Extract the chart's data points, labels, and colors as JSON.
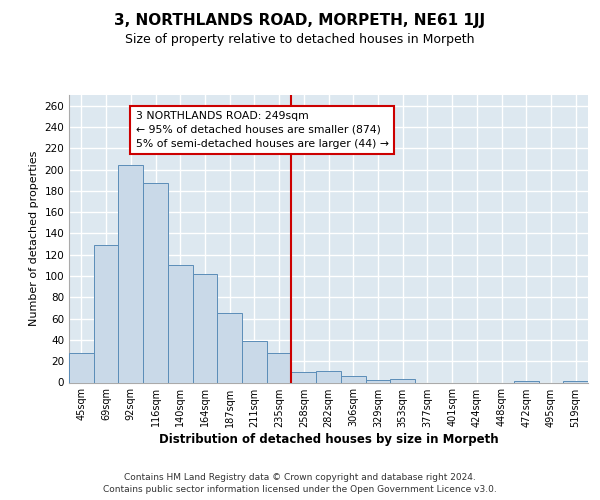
{
  "title": "3, NORTHLANDS ROAD, MORPETH, NE61 1JJ",
  "subtitle": "Size of property relative to detached houses in Morpeth",
  "xlabel": "Distribution of detached houses by size in Morpeth",
  "ylabel": "Number of detached properties",
  "categories": [
    "45sqm",
    "69sqm",
    "92sqm",
    "116sqm",
    "140sqm",
    "164sqm",
    "187sqm",
    "211sqm",
    "235sqm",
    "258sqm",
    "282sqm",
    "306sqm",
    "329sqm",
    "353sqm",
    "377sqm",
    "401sqm",
    "424sqm",
    "448sqm",
    "472sqm",
    "495sqm",
    "519sqm"
  ],
  "values": [
    28,
    129,
    204,
    187,
    110,
    102,
    65,
    39,
    28,
    10,
    11,
    6,
    2,
    3,
    0,
    0,
    0,
    0,
    1,
    0,
    1
  ],
  "bar_color": "#c9d9e8",
  "bar_edge_color": "#5b8db8",
  "background_color": "#dde8f0",
  "grid_color": "#ffffff",
  "vline_x": 8.5,
  "vline_color": "#cc0000",
  "annotation_text": "3 NORTHLANDS ROAD: 249sqm\n← 95% of detached houses are smaller (874)\n5% of semi-detached houses are larger (44) →",
  "annotation_box_color": "#cc0000",
  "footer_line1": "Contains HM Land Registry data © Crown copyright and database right 2024.",
  "footer_line2": "Contains public sector information licensed under the Open Government Licence v3.0.",
  "ylim": [
    0,
    270
  ],
  "yticks": [
    0,
    20,
    40,
    60,
    80,
    100,
    120,
    140,
    160,
    180,
    200,
    220,
    240,
    260
  ]
}
